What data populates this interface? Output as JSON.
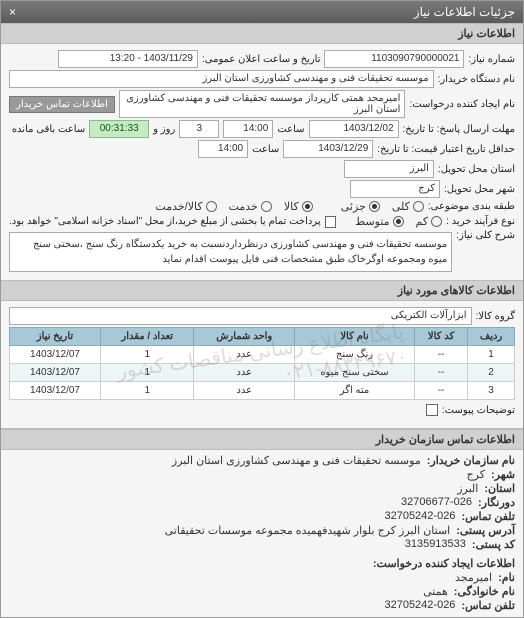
{
  "titlebar": {
    "title": "جزئیات اطلاعات نیاز",
    "close": "×"
  },
  "section_info": "اطلاعات نیاز",
  "need_no_label": "شماره نیاز:",
  "need_no": "1103090790000021",
  "announce_label": "تاریخ و ساعت اعلان عمومی:",
  "announce_val": "1403/11/29 - 13:20",
  "buyer_label": "نام دستگاه خریدار:",
  "buyer_val": "موسسه تحقیقات فنی و مهندسی کشاورزی استان البرز",
  "requester_label": "نام ایجاد کننده درخواست:",
  "requester_val": "امیرمجد همتی کارپرداز موسسه تحقیقات فنی و مهندسی کشاورزی استان البرز",
  "contact_link": "اطلاعات تماس خریدار",
  "deadline_send_label": "مهلت ارسال پاسخ: تا تاریخ:",
  "deadline_send_date": "1403/12/02",
  "time_label": "ساعت",
  "deadline_send_time": "14:00",
  "remain_days": "3",
  "remain_days_label": "روز و",
  "remain_time": "00:31:33",
  "remain_suffix": "ساعت باقی مانده",
  "deadline_valid_label": "حداقل تاریخ اعتبار قیمت: تا تاریخ:",
  "deadline_valid_date": "1403/12/29",
  "deadline_valid_time": "14:00",
  "province_label": "استان محل تحویل:",
  "province_val": "البرز",
  "city_label": "شهر محل تحویل:",
  "city_val": "کرج",
  "wholepart_label": "طبقه بندی موضوعی:",
  "whole": "کلی",
  "part": "جزئی",
  "goods_label": "کالا",
  "service_label": "خدمت",
  "both_label": "کالا/خدمت",
  "process_label": "نوع فرآیند خرید :",
  "low": "کم",
  "mid": "متوسط",
  "pay_note": "پرداخت تمام یا بخشی از مبلغ خرید،از محل \"اسناد خزانه اسلامی\" خواهد بود.",
  "desc_label": "شرح کلی نیاز:",
  "desc_text": "موسسه تحقیقات فنی و مهندسی کشاورزی درنظرداردنسبت به خرید یکدستگاه رنگ سنج ،سختی سنج میوه ومجموعه اوگرخاک طبق مشخصات فنی فایل پیوست اقدام نماید",
  "section_goods": "اطلاعات کالاهای مورد نیاز",
  "group_label": "گروه کالا:",
  "group_val": "ابزارآلات الکتریکی",
  "table": {
    "headers": [
      "ردیف",
      "کد کالا",
      "نام کالا",
      "واحد شمارش",
      "تعداد / مقدار",
      "تاریخ نیاز"
    ],
    "rows": [
      [
        "1",
        "--",
        "رنگ سنج",
        "عدد",
        "1",
        "1403/12/07"
      ],
      [
        "2",
        "--",
        "سختی سنج میوه",
        "عدد",
        "1",
        "1403/12/07"
      ],
      [
        "3",
        "--",
        "مته اگر",
        "عدد",
        "1",
        "1403/12/07"
      ]
    ]
  },
  "watermark_text": "پایگاه اطلاع رسانی مناقصات کشور\n۰۲۱-۸۸۳۴۹۶۷۰",
  "attach_label": "توضیحات پیوست:",
  "contact_header": "اطلاعات تماس سازمان خریدار",
  "c_org_label": "نام سازمان خریدار:",
  "c_org": "موسسه تحقیقات فنی و مهندسی کشاورزی استان البرز",
  "c_city_label": "شهر:",
  "c_city": "کرج",
  "c_prov_label": "استان:",
  "c_prov": "البرز",
  "c_fax_label": "دورنگار:",
  "c_fax": "32706677-026",
  "c_tel_label": "تلفن تماس:",
  "c_tel": "32705242-026",
  "c_addr_label": "آدرس پستی:",
  "c_addr": "استان البرز کرج بلوار شهیدفهمیده مجموعه موسسات تحقیقاتی",
  "c_post_label": "کد پستی:",
  "c_post": "3135913533",
  "creator_header": "اطلاعات ایجاد کننده درخواست:",
  "c_name_label": "نام:",
  "c_name": "امیرمجد",
  "c_family_label": "نام خانوادگی:",
  "c_family": "همتی",
  "c_tel2_label": "تلفن تماس:",
  "c_tel2": "32705242-026"
}
